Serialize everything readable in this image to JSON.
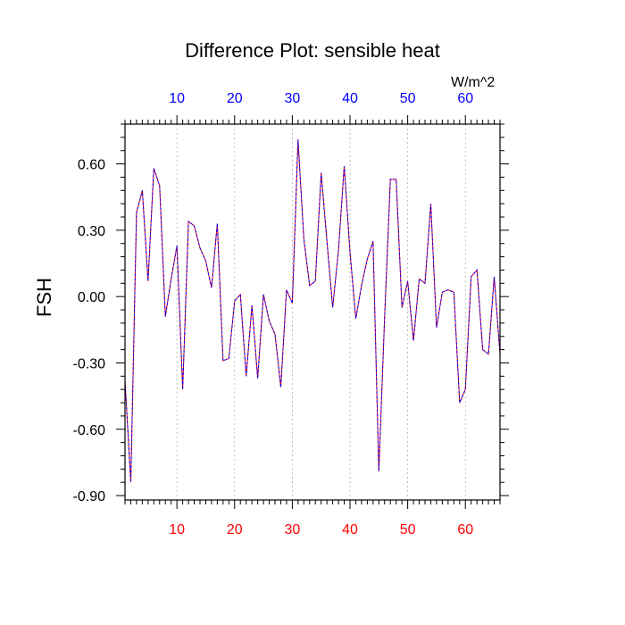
{
  "chart_data": {
    "type": "line",
    "title": "Difference Plot: sensible heat",
    "units": "W/m^2",
    "ylabel": "FSH",
    "xlim": [
      1,
      66
    ],
    "ylim": [
      -0.92,
      0.78
    ],
    "y_ticks": [
      "0.60",
      "0.30",
      "0.00",
      "-0.30",
      "-0.60",
      "-0.90"
    ],
    "y_tick_values": [
      0.6,
      0.3,
      0.0,
      -0.3,
      -0.6,
      -0.9
    ],
    "x_ticks_top": [
      "10",
      "20",
      "30",
      "40",
      "50",
      "60"
    ],
    "x_ticks_bottom": [
      "10",
      "20",
      "30",
      "40",
      "50",
      "60"
    ],
    "x_tick_values": [
      10,
      20,
      30,
      40,
      50,
      60
    ],
    "grid": "vertical dashed at major x ticks",
    "colors": {
      "top_tick_labels": "#0000ff",
      "bottom_tick_labels": "#ff0000",
      "line_primary": "#ff0000",
      "line_overlay": "#0000ff"
    },
    "series": [
      {
        "x": [
          1,
          2,
          3,
          4,
          5,
          6,
          7,
          8,
          9,
          10,
          11,
          12,
          13,
          14,
          15,
          16,
          17,
          18,
          19,
          20,
          21,
          22,
          23,
          24,
          25,
          26,
          27,
          28,
          29,
          30,
          31,
          32,
          33,
          34,
          35,
          36,
          37,
          38,
          39,
          40,
          41,
          42,
          43,
          44,
          45,
          46,
          47,
          48,
          49,
          50,
          51,
          52,
          53,
          54,
          55,
          56,
          57,
          58,
          59,
          60,
          61,
          62,
          63,
          64,
          65,
          66
        ],
        "values": [
          -0.38,
          -0.84,
          0.38,
          0.48,
          0.07,
          0.58,
          0.5,
          -0.09,
          0.08,
          0.23,
          -0.42,
          0.34,
          0.32,
          0.22,
          0.16,
          0.04,
          0.33,
          -0.29,
          -0.28,
          -0.02,
          0.01,
          -0.36,
          -0.04,
          -0.37,
          0.01,
          -0.11,
          -0.17,
          -0.41,
          0.03,
          -0.03,
          0.71,
          0.26,
          0.05,
          0.07,
          0.56,
          0.25,
          -0.05,
          0.21,
          0.59,
          0.2,
          -0.1,
          0.05,
          0.17,
          0.25,
          -0.79,
          -0.09,
          0.53,
          0.53,
          -0.05,
          0.07,
          -0.2,
          0.08,
          0.06,
          0.42,
          -0.14,
          0.02,
          0.03,
          0.02,
          -0.48,
          -0.42,
          0.09,
          0.12,
          -0.24,
          -0.26,
          0.09,
          -0.26
        ]
      }
    ]
  }
}
